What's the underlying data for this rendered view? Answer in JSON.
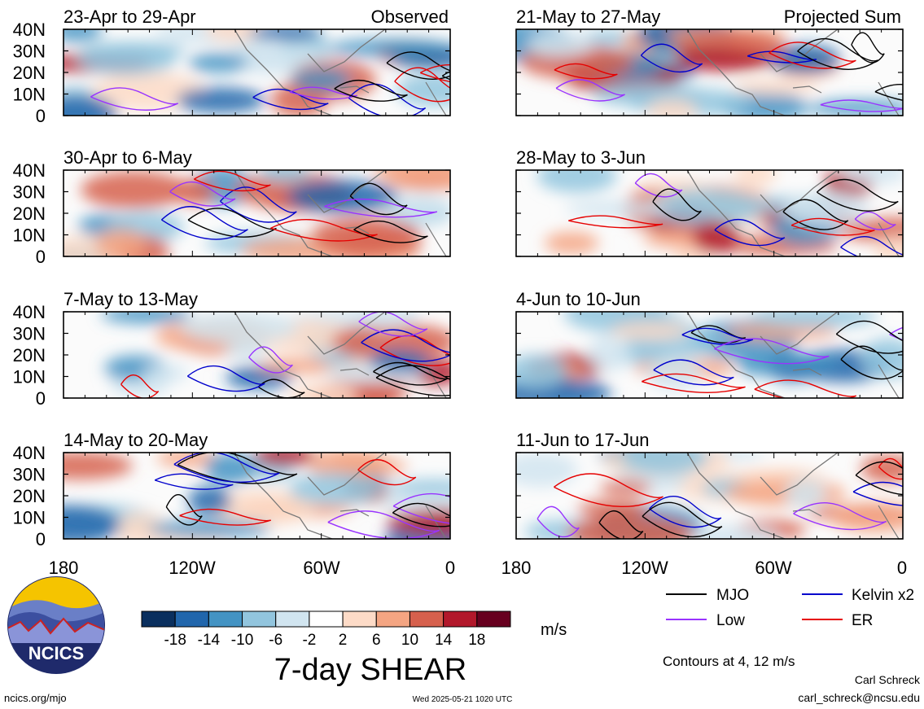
{
  "panels": {
    "left": [
      {
        "title": "23-Apr to 29-Apr",
        "corner_label": "Observed"
      },
      {
        "title": "30-Apr to 6-May",
        "corner_label": ""
      },
      {
        "title": "7-May to 13-May",
        "corner_label": ""
      },
      {
        "title": "14-May to 20-May",
        "corner_label": ""
      }
    ],
    "right": [
      {
        "title": "21-May to 27-May",
        "corner_label": "Projected Sum"
      },
      {
        "title": "28-May to 3-Jun",
        "corner_label": ""
      },
      {
        "title": "4-Jun to 10-Jun",
        "corner_label": ""
      },
      {
        "title": "11-Jun to 17-Jun",
        "corner_label": ""
      }
    ]
  },
  "axes": {
    "lat_labels": [
      "40N",
      "30N",
      "20N",
      "10N",
      "0"
    ],
    "lon_labels": [
      "180",
      "120W",
      "60W",
      "0"
    ]
  },
  "colorbar": {
    "tick_labels": [
      "-18",
      "-14",
      "-10",
      "-6",
      "-2",
      "2",
      "6",
      "10",
      "14",
      "18"
    ],
    "colors": [
      "#0a2f5e",
      "#2166ac",
      "#4393c3",
      "#92c5de",
      "#d1e5f0",
      "#ffffff",
      "#fddbc7",
      "#f4a582",
      "#d6604d",
      "#b2182b",
      "#67001f"
    ],
    "unit": "m/s"
  },
  "chart_title": "7-day SHEAR",
  "legend": {
    "items": [
      {
        "label": "MJO",
        "color": "#000000"
      },
      {
        "label": "Kelvin x2",
        "color": "#0000cc"
      },
      {
        "label": "Low",
        "color": "#9933ff"
      },
      {
        "label": "ER",
        "color": "#e60000"
      }
    ],
    "note": "Contours at 4, 12 m/s"
  },
  "logo": {
    "text": "NCICS"
  },
  "footer": {
    "left": "ncics.org/mjo",
    "center": "Wed 2025-05-21 1020 UTC",
    "author": "Carl Schreck",
    "email": "carl_schreck@ncsu.edu"
  }
}
